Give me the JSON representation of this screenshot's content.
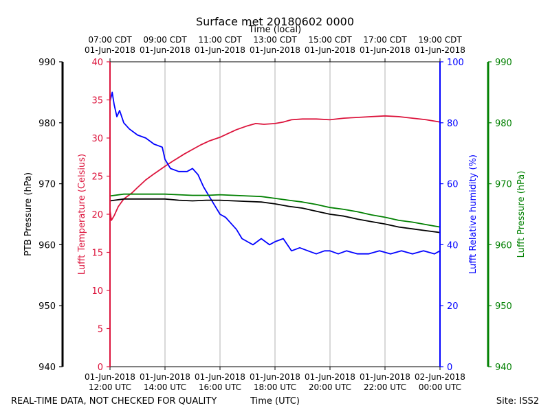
{
  "chart_data": {
    "type": "line",
    "title": "Surface met 20180602 0000",
    "top_axis_label": "Time (local)",
    "bottom_axis_label": "Time (UTC)",
    "footer_left": "REAL-TIME DATA, NOT CHECKED FOR QUALITY",
    "footer_right": "Site: ISS2",
    "x_range_hours_utc": [
      12,
      24
    ],
    "top_ticks": [
      {
        "line1": "07:00 CDT",
        "line2": "01-Jun-2018",
        "hour": 12
      },
      {
        "line1": "09:00 CDT",
        "line2": "01-Jun-2018",
        "hour": 14
      },
      {
        "line1": "11:00 CDT",
        "line2": "01-Jun-2018",
        "hour": 16
      },
      {
        "line1": "13:00 CDT",
        "line2": "01-Jun-2018",
        "hour": 18
      },
      {
        "line1": "15:00 CDT",
        "line2": "01-Jun-2018",
        "hour": 20
      },
      {
        "line1": "17:00 CDT",
        "line2": "01-Jun-2018",
        "hour": 22
      },
      {
        "line1": "19:00 CDT",
        "line2": "01-Jun-2018",
        "hour": 24
      }
    ],
    "bottom_ticks": [
      {
        "line1": "01-Jun-2018",
        "line2": "12:00 UTC",
        "hour": 12
      },
      {
        "line1": "01-Jun-2018",
        "line2": "14:00 UTC",
        "hour": 14
      },
      {
        "line1": "01-Jun-2018",
        "line2": "16:00 UTC",
        "hour": 16
      },
      {
        "line1": "01-Jun-2018",
        "line2": "18:00 UTC",
        "hour": 18
      },
      {
        "line1": "01-Jun-2018",
        "line2": "20:00 UTC",
        "hour": 20
      },
      {
        "line1": "01-Jun-2018",
        "line2": "22:00 UTC",
        "hour": 22
      },
      {
        "line1": "02-Jun-2018",
        "line2": "00:00 UTC",
        "hour": 24
      }
    ],
    "axes": {
      "ptb_pressure": {
        "label": "PTB Pressure (hPa)",
        "range": [
          940,
          990
        ],
        "ticks": [
          "940",
          "950",
          "960",
          "970",
          "980",
          "990"
        ],
        "color": "#000000"
      },
      "temperature": {
        "label": "Lufft Temperature (Celsius)",
        "range": [
          0,
          40
        ],
        "ticks": [
          "0",
          "5",
          "10",
          "15",
          "20",
          "25",
          "30",
          "35",
          "40"
        ],
        "color": "#dc143c"
      },
      "humidity": {
        "label": "Lufft Relative humidity (%)",
        "range": [
          0,
          100
        ],
        "ticks": [
          "0",
          "20",
          "40",
          "60",
          "80",
          "100"
        ],
        "color": "#0000ff"
      },
      "lufft_pressure": {
        "label": "Lufft Pressure (hPa)",
        "range": [
          940,
          990
        ],
        "ticks": [
          "940",
          "950",
          "960",
          "970",
          "980",
          "990"
        ],
        "color": "#008000"
      }
    },
    "series": [
      {
        "name": "Lufft Temperature",
        "axis": "temperature",
        "color": "#dc143c",
        "x": [
          12.0,
          12.05,
          12.15,
          12.3,
          12.5,
          12.8,
          13.0,
          13.3,
          13.6,
          14.0,
          14.3,
          14.7,
          15.0,
          15.3,
          15.6,
          16.0,
          16.3,
          16.6,
          17.0,
          17.3,
          17.6,
          18.0,
          18.3,
          18.6,
          19.0,
          19.5,
          20.0,
          20.5,
          21.0,
          21.5,
          22.0,
          22.5,
          23.0,
          23.5,
          24.0
        ],
        "y": [
          20.5,
          19.2,
          19.8,
          21.0,
          22.0,
          22.8,
          23.5,
          24.5,
          25.3,
          26.3,
          27.0,
          27.9,
          28.5,
          29.1,
          29.6,
          30.1,
          30.6,
          31.1,
          31.6,
          31.9,
          31.8,
          31.9,
          32.1,
          32.4,
          32.5,
          32.5,
          32.4,
          32.6,
          32.7,
          32.8,
          32.9,
          32.8,
          32.6,
          32.4,
          32.1
        ]
      },
      {
        "name": "Lufft Relative humidity",
        "axis": "humidity",
        "color": "#0000ff",
        "x": [
          12.0,
          12.08,
          12.15,
          12.25,
          12.35,
          12.5,
          12.7,
          13.0,
          13.3,
          13.6,
          13.9,
          14.0,
          14.2,
          14.5,
          14.8,
          15.0,
          15.2,
          15.4,
          15.6,
          15.8,
          16.0,
          16.2,
          16.4,
          16.6,
          16.8,
          17.0,
          17.2,
          17.5,
          17.8,
          18.0,
          18.3,
          18.6,
          18.9,
          19.2,
          19.5,
          19.8,
          20.0,
          20.3,
          20.6,
          21.0,
          21.4,
          21.8,
          22.2,
          22.6,
          23.0,
          23.4,
          23.8,
          24.0
        ],
        "y": [
          87,
          90,
          86,
          82,
          84,
          80,
          78,
          76,
          75,
          73,
          72,
          68,
          65,
          64,
          64,
          65,
          63,
          59,
          56,
          53,
          50,
          49,
          47,
          45,
          42,
          41,
          40,
          42,
          40,
          41,
          42,
          38,
          39,
          38,
          37,
          38,
          38,
          37,
          38,
          37,
          37,
          38,
          37,
          38,
          37,
          38,
          37,
          38
        ]
      },
      {
        "name": "Lufft Pressure",
        "axis": "lufft_pressure",
        "color": "#008000",
        "x": [
          12.0,
          12.5,
          13.0,
          13.5,
          14.0,
          14.5,
          15.0,
          15.5,
          16.0,
          16.5,
          17.0,
          17.5,
          18.0,
          18.5,
          19.0,
          19.5,
          20.0,
          20.5,
          21.0,
          21.5,
          22.0,
          22.5,
          23.0,
          23.5,
          24.0
        ],
        "y": [
          968.0,
          968.3,
          968.3,
          968.3,
          968.3,
          968.2,
          968.1,
          968.1,
          968.2,
          968.1,
          968.0,
          967.9,
          967.6,
          967.3,
          967.0,
          966.6,
          966.1,
          965.8,
          965.4,
          964.9,
          964.5,
          964.0,
          963.7,
          963.3,
          962.9
        ]
      },
      {
        "name": "PTB Pressure",
        "axis": "ptb_pressure",
        "color": "#000000",
        "x": [
          12.0,
          12.5,
          13.0,
          13.5,
          14.0,
          14.5,
          15.0,
          15.5,
          16.0,
          16.5,
          17.0,
          17.5,
          18.0,
          18.5,
          19.0,
          19.5,
          20.0,
          20.5,
          21.0,
          21.5,
          22.0,
          22.5,
          23.0,
          23.5,
          24.0
        ],
        "y": [
          967.2,
          967.5,
          967.5,
          967.5,
          967.5,
          967.3,
          967.2,
          967.3,
          967.3,
          967.2,
          967.1,
          967.0,
          966.7,
          966.3,
          966.0,
          965.5,
          965.0,
          964.7,
          964.2,
          963.8,
          963.4,
          962.9,
          962.6,
          962.3,
          962.0
        ]
      }
    ]
  }
}
